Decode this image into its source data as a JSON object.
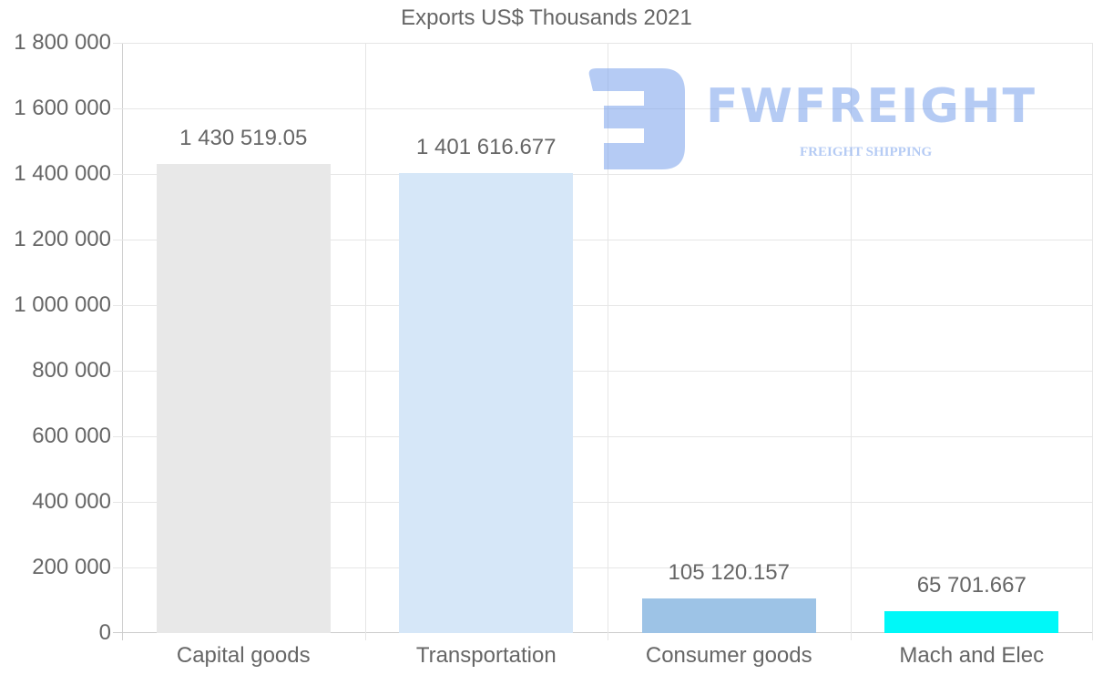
{
  "chart_data": {
    "type": "bar",
    "title": "Exports US$ Thousands 2021",
    "xlabel": "",
    "ylabel": "",
    "categories": [
      "Capital goods",
      "Transportation",
      "Consumer goods",
      "Mach and Elec"
    ],
    "values": [
      1430519.05,
      1401616.677,
      105120.157,
      65701.667
    ],
    "value_labels": [
      "1 430 519.05",
      "1 401 616.677",
      "105 120.157",
      "65 701.667"
    ],
    "colors": [
      "#e8e8e8",
      "#d6e7f8",
      "#9dc3e6",
      "#00f8f8"
    ],
    "ylim": [
      0,
      1800000
    ],
    "yticks": [
      0,
      200000,
      400000,
      600000,
      800000,
      1000000,
      1200000,
      1400000,
      1600000,
      1800000
    ],
    "ytick_labels": [
      "0",
      "200 000",
      "400 000",
      "600 000",
      "800 000",
      "1 000 000",
      "1 200 000",
      "1 400 000",
      "1 600 000",
      "1 800 000"
    ],
    "grid": true,
    "legend": "none"
  },
  "watermark": {
    "brand": "FWFREIGHT",
    "tagline": "FREIGHT SHIPPING"
  }
}
